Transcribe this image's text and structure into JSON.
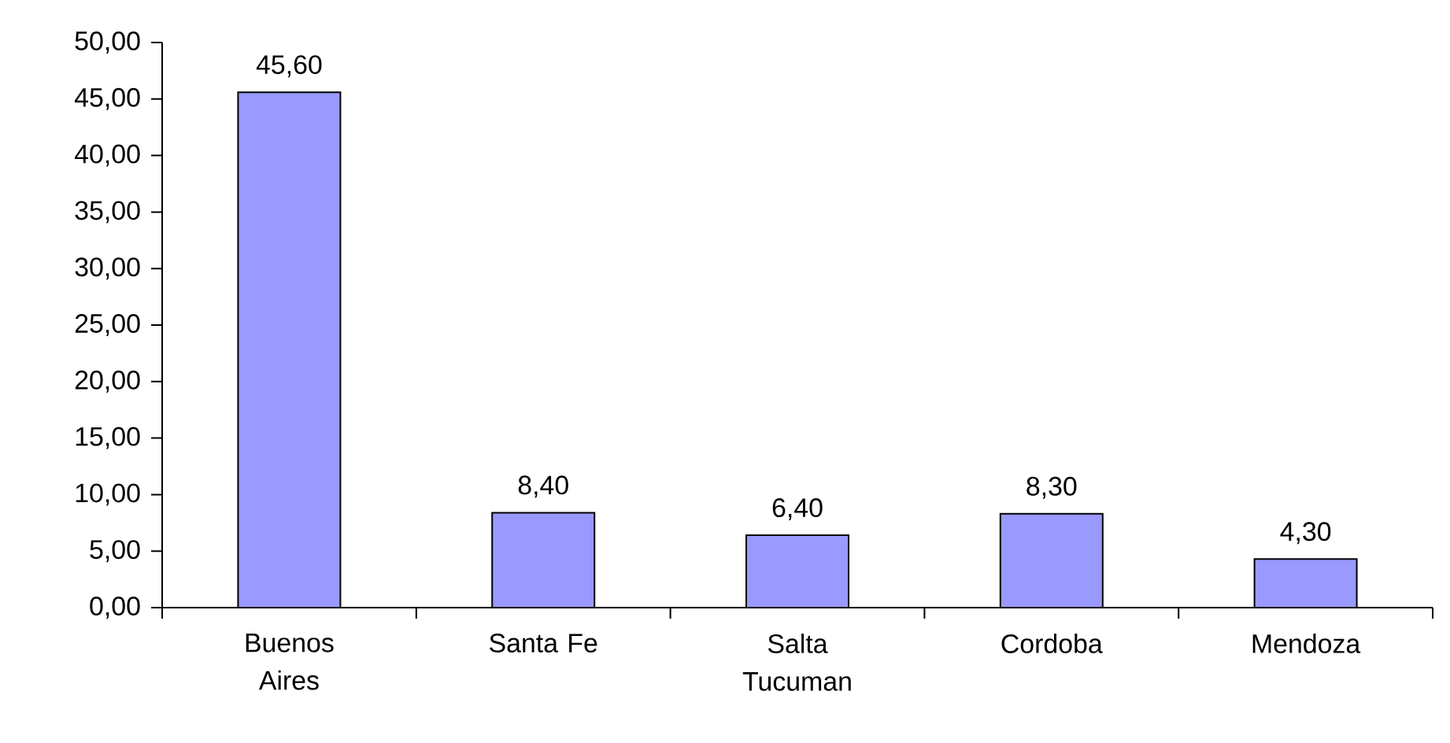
{
  "chart_data": {
    "type": "bar",
    "categories": [
      "Buenos Aires",
      "Santa Fe",
      "Salta Tucuman",
      "Cordoba",
      "Mendoza"
    ],
    "values": [
      45.6,
      8.4,
      6.4,
      8.3,
      4.3
    ],
    "value_labels": [
      "45,60",
      "8,40",
      "6,40",
      "8,30",
      "4,30"
    ],
    "color": "#9999ff",
    "ylim": [
      0,
      50
    ],
    "yticks": [
      {
        "value": 0,
        "label": "0,00"
      },
      {
        "value": 5,
        "label": "5,00"
      },
      {
        "value": 10,
        "label": "10,00"
      },
      {
        "value": 15,
        "label": "15,00"
      },
      {
        "value": 20,
        "label": "20,00"
      },
      {
        "value": 25,
        "label": "25,00"
      },
      {
        "value": 30,
        "label": "30,00"
      },
      {
        "value": 35,
        "label": "35,00"
      },
      {
        "value": 40,
        "label": "40,00"
      },
      {
        "value": 45,
        "label": "45,00"
      },
      {
        "value": 50,
        "label": "50,00"
      }
    ],
    "grid": false
  }
}
